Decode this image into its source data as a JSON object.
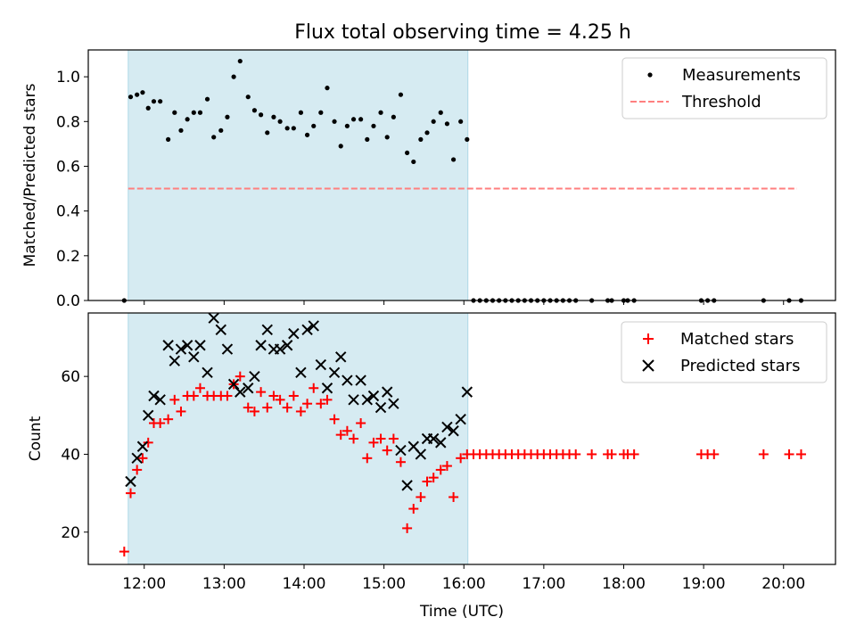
{
  "chart_data": [
    {
      "type": "scatter",
      "title": "Flux total observing time = 4.25 h",
      "ylabel": "Matched/Predicted stars",
      "xlabel": "",
      "x_unit": "hours UTC",
      "xlim": [
        11.3,
        20.65
      ],
      "ylim": [
        0,
        1.12
      ],
      "yticks": [
        0,
        0.2,
        0.4,
        0.6,
        0.8,
        1.0
      ],
      "ytick_labels": [
        "0.0",
        "0.2",
        "0.4",
        "0.6",
        "0.8",
        "1.0"
      ],
      "xticks": [
        12,
        13,
        14,
        15,
        16,
        17,
        18,
        19,
        20
      ],
      "grid": false,
      "legend_position": "top-right",
      "shaded_span": {
        "x": [
          11.8,
          16.05
        ],
        "color": "#add8e6"
      },
      "series": [
        {
          "name": "Measurements",
          "kind": "scatter-dot",
          "color": "#000000",
          "points": [
            [
              11.75,
              0.0
            ],
            [
              11.83,
              0.91
            ],
            [
              11.91,
              0.92
            ],
            [
              11.98,
              0.93
            ],
            [
              12.05,
              0.86
            ],
            [
              12.12,
              0.89
            ],
            [
              12.2,
              0.89
            ],
            [
              12.3,
              0.72
            ],
            [
              12.38,
              0.84
            ],
            [
              12.46,
              0.76
            ],
            [
              12.54,
              0.81
            ],
            [
              12.62,
              0.84
            ],
            [
              12.7,
              0.84
            ],
            [
              12.79,
              0.9
            ],
            [
              12.87,
              0.73
            ],
            [
              12.96,
              0.76
            ],
            [
              13.04,
              0.82
            ],
            [
              13.12,
              1.0
            ],
            [
              13.2,
              1.07
            ],
            [
              13.3,
              0.91
            ],
            [
              13.38,
              0.85
            ],
            [
              13.46,
              0.83
            ],
            [
              13.54,
              0.75
            ],
            [
              13.62,
              0.82
            ],
            [
              13.7,
              0.8
            ],
            [
              13.79,
              0.77
            ],
            [
              13.87,
              0.77
            ],
            [
              13.96,
              0.84
            ],
            [
              14.04,
              0.74
            ],
            [
              14.12,
              0.78
            ],
            [
              14.21,
              0.84
            ],
            [
              14.29,
              0.95
            ],
            [
              14.38,
              0.8
            ],
            [
              14.46,
              0.69
            ],
            [
              14.54,
              0.78
            ],
            [
              14.62,
              0.81
            ],
            [
              14.71,
              0.81
            ],
            [
              14.79,
              0.72
            ],
            [
              14.87,
              0.78
            ],
            [
              14.96,
              0.84
            ],
            [
              15.04,
              0.73
            ],
            [
              15.12,
              0.82
            ],
            [
              15.21,
              0.92
            ],
            [
              15.29,
              0.66
            ],
            [
              15.37,
              0.62
            ],
            [
              15.46,
              0.72
            ],
            [
              15.54,
              0.75
            ],
            [
              15.62,
              0.8
            ],
            [
              15.71,
              0.84
            ],
            [
              15.79,
              0.79
            ],
            [
              15.87,
              0.63
            ],
            [
              15.96,
              0.8
            ],
            [
              16.04,
              0.72
            ],
            [
              16.12,
              0.0
            ],
            [
              16.2,
              0.0
            ],
            [
              16.28,
              0.0
            ],
            [
              16.36,
              0.0
            ],
            [
              16.44,
              0.0
            ],
            [
              16.52,
              0.0
            ],
            [
              16.6,
              0.0
            ],
            [
              16.68,
              0.0
            ],
            [
              16.76,
              0.0
            ],
            [
              16.84,
              0.0
            ],
            [
              16.92,
              0.0
            ],
            [
              17.0,
              0.0
            ],
            [
              17.08,
              0.0
            ],
            [
              17.16,
              0.0
            ],
            [
              17.24,
              0.0
            ],
            [
              17.32,
              0.0
            ],
            [
              17.4,
              0.0
            ],
            [
              17.6,
              0.0
            ],
            [
              17.8,
              0.0
            ],
            [
              17.85,
              0.0
            ],
            [
              18.0,
              0.0
            ],
            [
              18.05,
              0.0
            ],
            [
              18.13,
              0.0
            ],
            [
              18.97,
              0.0
            ],
            [
              19.05,
              0.0
            ],
            [
              19.13,
              0.0
            ],
            [
              19.75,
              0.0
            ],
            [
              20.07,
              0.0
            ],
            [
              20.22,
              0.0
            ]
          ]
        },
        {
          "name": "Threshold",
          "kind": "dashed-line",
          "color": "#ff7f7f",
          "x": [
            11.8,
            20.17
          ],
          "y": [
            0.5,
            0.5
          ]
        }
      ]
    },
    {
      "type": "scatter",
      "title": "",
      "ylabel": "Count",
      "xlabel": "Time (UTC)",
      "x_unit": "hours UTC",
      "xlim": [
        11.3,
        20.65
      ],
      "ylim": [
        11.7,
        76.3
      ],
      "yticks": [
        20,
        40,
        60
      ],
      "ytick_labels": [
        "20",
        "40",
        "60"
      ],
      "xticks": [
        12,
        13,
        14,
        15,
        16,
        17,
        18,
        19,
        20
      ],
      "xtick_labels": [
        "12:00",
        "13:00",
        "14:00",
        "15:00",
        "16:00",
        "17:00",
        "18:00",
        "19:00",
        "20:00"
      ],
      "grid": false,
      "legend_position": "top-right",
      "shaded_span": {
        "x": [
          11.8,
          16.05
        ],
        "color": "#add8e6"
      },
      "series": [
        {
          "name": "Matched stars",
          "kind": "scatter-plus",
          "color": "#ff0000",
          "points": [
            [
              11.75,
              15
            ],
            [
              11.83,
              30
            ],
            [
              11.91,
              36
            ],
            [
              11.98,
              39
            ],
            [
              12.05,
              43
            ],
            [
              12.12,
              48
            ],
            [
              12.2,
              48
            ],
            [
              12.3,
              49
            ],
            [
              12.38,
              54
            ],
            [
              12.46,
              51
            ],
            [
              12.54,
              55
            ],
            [
              12.62,
              55
            ],
            [
              12.7,
              57
            ],
            [
              12.79,
              55
            ],
            [
              12.87,
              55
            ],
            [
              12.96,
              55
            ],
            [
              13.04,
              55
            ],
            [
              13.12,
              58
            ],
            [
              13.2,
              60
            ],
            [
              13.3,
              52
            ],
            [
              13.38,
              51
            ],
            [
              13.46,
              56
            ],
            [
              13.54,
              52
            ],
            [
              13.62,
              55
            ],
            [
              13.7,
              54
            ],
            [
              13.79,
              52
            ],
            [
              13.87,
              55
            ],
            [
              13.96,
              51
            ],
            [
              14.04,
              53
            ],
            [
              14.12,
              57
            ],
            [
              14.21,
              53
            ],
            [
              14.29,
              54
            ],
            [
              14.38,
              49
            ],
            [
              14.46,
              45
            ],
            [
              14.54,
              46
            ],
            [
              14.62,
              44
            ],
            [
              14.71,
              48
            ],
            [
              14.79,
              39
            ],
            [
              14.87,
              43
            ],
            [
              14.96,
              44
            ],
            [
              15.04,
              41
            ],
            [
              15.12,
              44
            ],
            [
              15.21,
              38
            ],
            [
              15.29,
              21
            ],
            [
              15.37,
              26
            ],
            [
              15.46,
              29
            ],
            [
              15.54,
              33
            ],
            [
              15.62,
              34
            ],
            [
              15.71,
              36
            ],
            [
              15.79,
              37
            ],
            [
              15.87,
              29
            ],
            [
              15.96,
              39
            ],
            [
              16.04,
              40
            ],
            [
              16.12,
              40
            ],
            [
              16.2,
              40
            ],
            [
              16.28,
              40
            ],
            [
              16.36,
              40
            ],
            [
              16.44,
              40
            ],
            [
              16.52,
              40
            ],
            [
              16.6,
              40
            ],
            [
              16.68,
              40
            ],
            [
              16.76,
              40
            ],
            [
              16.84,
              40
            ],
            [
              16.92,
              40
            ],
            [
              17.0,
              40
            ],
            [
              17.08,
              40
            ],
            [
              17.16,
              40
            ],
            [
              17.24,
              40
            ],
            [
              17.32,
              40
            ],
            [
              17.4,
              40
            ],
            [
              17.6,
              40
            ],
            [
              17.8,
              40
            ],
            [
              17.85,
              40
            ],
            [
              18.0,
              40
            ],
            [
              18.05,
              40
            ],
            [
              18.13,
              40
            ],
            [
              18.97,
              40
            ],
            [
              19.05,
              40
            ],
            [
              19.13,
              40
            ],
            [
              19.75,
              40
            ],
            [
              20.07,
              40
            ],
            [
              20.22,
              40
            ]
          ]
        },
        {
          "name": "Predicted stars",
          "kind": "scatter-x",
          "color": "#000000",
          "points": [
            [
              11.83,
              33
            ],
            [
              11.91,
              39
            ],
            [
              11.98,
              42
            ],
            [
              12.05,
              50
            ],
            [
              12.12,
              55
            ],
            [
              12.2,
              54
            ],
            [
              12.3,
              68
            ],
            [
              12.38,
              64
            ],
            [
              12.46,
              67
            ],
            [
              12.54,
              68
            ],
            [
              12.62,
              65
            ],
            [
              12.7,
              68
            ],
            [
              12.79,
              61
            ],
            [
              12.87,
              75
            ],
            [
              12.96,
              72
            ],
            [
              13.04,
              67
            ],
            [
              13.12,
              58
            ],
            [
              13.2,
              56
            ],
            [
              13.3,
              57
            ],
            [
              13.38,
              60
            ],
            [
              13.46,
              68
            ],
            [
              13.54,
              72
            ],
            [
              13.62,
              67
            ],
            [
              13.7,
              67
            ],
            [
              13.79,
              68
            ],
            [
              13.87,
              71
            ],
            [
              13.96,
              61
            ],
            [
              14.04,
              72
            ],
            [
              14.12,
              73
            ],
            [
              14.21,
              63
            ],
            [
              14.29,
              57
            ],
            [
              14.38,
              61
            ],
            [
              14.46,
              65
            ],
            [
              14.54,
              59
            ],
            [
              14.62,
              54
            ],
            [
              14.71,
              59
            ],
            [
              14.79,
              54
            ],
            [
              14.87,
              55
            ],
            [
              14.96,
              52
            ],
            [
              15.04,
              56
            ],
            [
              15.12,
              53
            ],
            [
              15.21,
              41
            ],
            [
              15.29,
              32
            ],
            [
              15.37,
              42
            ],
            [
              15.46,
              40
            ],
            [
              15.54,
              44
            ],
            [
              15.62,
              44
            ],
            [
              15.71,
              43
            ],
            [
              15.79,
              47
            ],
            [
              15.87,
              46
            ],
            [
              15.96,
              49
            ],
            [
              16.04,
              56
            ]
          ]
        }
      ]
    }
  ]
}
